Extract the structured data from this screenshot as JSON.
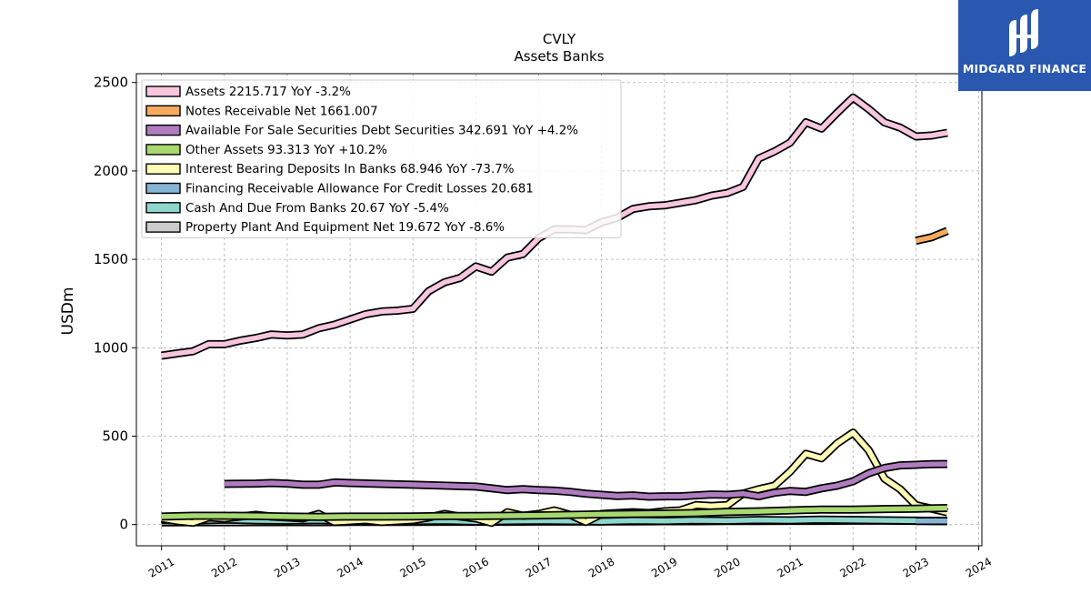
{
  "chart_data": {
    "type": "line",
    "title": "CVLY",
    "subtitle": "Assets Banks",
    "ylabel": "USDm",
    "xlim": [
      2010.6,
      2024.05
    ],
    "ylim": [
      -120,
      2550
    ],
    "yticks": [
      0,
      500,
      1000,
      1500,
      2000,
      2500
    ],
    "xticks": [
      2011,
      2012,
      2013,
      2014,
      2015,
      2016,
      2017,
      2018,
      2019,
      2020,
      2021,
      2022,
      2023,
      2024
    ],
    "grid": true,
    "legend_position": "upper-left",
    "series": [
      {
        "name": "Assets",
        "legend": "Assets  2215.717 YoY -3.2%",
        "color": "#f7c6de",
        "x": [
          2011.0,
          2011.25,
          2011.5,
          2011.75,
          2012.0,
          2012.25,
          2012.5,
          2012.75,
          2013.0,
          2013.25,
          2013.5,
          2013.75,
          2014.0,
          2014.25,
          2014.5,
          2014.75,
          2015.0,
          2015.25,
          2015.5,
          2015.75,
          2016.0,
          2016.25,
          2016.5,
          2016.75,
          2017.0,
          2017.25,
          2017.5,
          2017.75,
          2018.0,
          2018.25,
          2018.5,
          2018.75,
          2019.0,
          2019.25,
          2019.5,
          2019.75,
          2020.0,
          2020.25,
          2020.5,
          2020.75,
          2021.0,
          2021.25,
          2021.5,
          2021.75,
          2022.0,
          2022.25,
          2022.5,
          2022.75,
          2023.0,
          2023.25,
          2023.5
        ],
        "y": [
          955,
          968,
          980,
          1020,
          1020,
          1040,
          1055,
          1075,
          1070,
          1075,
          1110,
          1130,
          1160,
          1190,
          1205,
          1210,
          1220,
          1320,
          1370,
          1395,
          1460,
          1430,
          1510,
          1530,
          1620,
          1670,
          1670,
          1665,
          1710,
          1735,
          1785,
          1800,
          1805,
          1820,
          1835,
          1860,
          1875,
          1910,
          2070,
          2110,
          2160,
          2275,
          2240,
          2330,
          2415,
          2350,
          2275,
          2245,
          2195,
          2200,
          2215.717
        ]
      },
      {
        "name": "Notes Receivable Net",
        "legend": "Notes Receivable Net  1661.007",
        "color": "#f5aa60",
        "x": [
          2023.0,
          2023.25,
          2023.5
        ],
        "y": [
          1605,
          1625,
          1661.007
        ]
      },
      {
        "name": "Available For Sale Securities Debt Securities",
        "legend": "Available For Sale Securities Debt Securities  342.691 YoY +4.2%",
        "color": "#b07cc0",
        "x": [
          2012.0,
          2012.5,
          2012.75,
          2013.0,
          2013.25,
          2013.5,
          2013.75,
          2014.0,
          2014.5,
          2015.0,
          2015.5,
          2016.0,
          2016.25,
          2016.5,
          2016.75,
          2017.0,
          2017.25,
          2017.5,
          2017.75,
          2018.0,
          2018.25,
          2018.5,
          2018.75,
          2019.0,
          2019.25,
          2019.5,
          2019.75,
          2020.0,
          2020.25,
          2020.5,
          2020.75,
          2021.0,
          2021.25,
          2021.5,
          2021.75,
          2022.0,
          2022.25,
          2022.5,
          2022.75,
          2023.0,
          2023.25,
          2023.5
        ],
        "y": [
          230,
          232,
          235,
          232,
          225,
          225,
          238,
          235,
          230,
          225,
          220,
          215,
          205,
          195,
          200,
          195,
          192,
          185,
          175,
          168,
          162,
          165,
          158,
          160,
          160,
          165,
          170,
          168,
          175,
          160,
          180,
          190,
          185,
          205,
          220,
          245,
          290,
          320,
          335,
          338,
          342,
          342.691
        ]
      },
      {
        "name": "Other Assets",
        "legend": "Other Assets  93.313 YoY +10.2%",
        "color": "#a8d870",
        "x": [
          2011.0,
          2011.5,
          2012.0,
          2012.5,
          2013.0,
          2013.5,
          2014.0,
          2014.5,
          2015.0,
          2015.5,
          2016.0,
          2016.5,
          2017.0,
          2017.5,
          2018.0,
          2018.5,
          2019.0,
          2019.5,
          2020.0,
          2020.5,
          2021.0,
          2021.5,
          2022.0,
          2022.5,
          2023.0,
          2023.5
        ],
        "y": [
          45,
          50,
          50,
          48,
          45,
          43,
          45,
          45,
          46,
          48,
          48,
          50,
          52,
          55,
          58,
          60,
          62,
          65,
          72,
          75,
          80,
          85,
          85,
          88,
          90,
          93.313
        ]
      },
      {
        "name": "Interest Bearing Deposits In Banks",
        "legend": "Interest Bearing Deposits In Banks  68.946 YoY -73.7%",
        "color": "#fefdb6",
        "x": [
          2011.0,
          2011.25,
          2011.5,
          2011.75,
          2012.0,
          2012.25,
          2012.5,
          2012.75,
          2013.0,
          2013.25,
          2013.5,
          2013.75,
          2014.0,
          2014.25,
          2014.5,
          2014.75,
          2015.0,
          2015.25,
          2015.5,
          2015.75,
          2016.0,
          2016.25,
          2016.5,
          2016.75,
          2017.0,
          2017.25,
          2017.5,
          2017.75,
          2018.0,
          2018.25,
          2018.5,
          2018.75,
          2019.0,
          2019.25,
          2019.5,
          2019.75,
          2020.0,
          2020.25,
          2020.5,
          2020.75,
          2021.0,
          2021.25,
          2021.5,
          2021.75,
          2022.0,
          2022.25,
          2022.5,
          2022.75,
          2023.0,
          2023.25,
          2023.5
        ],
        "y": [
          35,
          20,
          10,
          40,
          35,
          45,
          55,
          45,
          40,
          35,
          60,
          15,
          20,
          25,
          15,
          20,
          25,
          40,
          60,
          45,
          35,
          10,
          70,
          50,
          60,
          80,
          55,
          15,
          60,
          65,
          70,
          65,
          75,
          80,
          110,
          105,
          110,
          175,
          200,
          220,
          300,
          400,
          375,
          460,
          520,
          420,
          260,
          200,
          110,
          90,
          68.946
        ]
      },
      {
        "name": "Financing Receivable Allowance For Credit Losses",
        "legend": "Financing Receivable Allowance For Credit Losses  20.681",
        "color": "#86b4d4",
        "x": [
          2023.0,
          2023.25,
          2023.5
        ],
        "y": [
          20.0,
          20.3,
          20.681
        ]
      },
      {
        "name": "Cash And Due From Banks",
        "legend": "Cash And Due From Banks  20.67 YoY -5.4%",
        "color": "#8ed6cc",
        "x": [
          2011.0,
          2011.5,
          2012.0,
          2012.5,
          2013.0,
          2013.5,
          2014.0,
          2014.5,
          2015.0,
          2015.5,
          2016.0,
          2016.5,
          2017.0,
          2017.5,
          2018.0,
          2018.5,
          2019.0,
          2019.5,
          2020.0,
          2020.5,
          2021.0,
          2021.5,
          2022.0,
          2022.5,
          2023.0,
          2023.5
        ],
        "y": [
          25,
          22,
          28,
          24,
          22,
          25,
          20,
          18,
          20,
          22,
          18,
          20,
          22,
          20,
          18,
          22,
          20,
          24,
          22,
          26,
          24,
          28,
          26,
          24,
          22,
          20.67
        ]
      },
      {
        "name": "Property Plant And Equipment Net",
        "legend": "Property Plant And Equipment Net  19.672 YoY -8.6%",
        "color": "#cccccc",
        "x": [
          2011.0,
          2011.5,
          2012.0,
          2012.5,
          2013.0,
          2013.5,
          2014.0,
          2014.5,
          2015.0,
          2015.5,
          2016.0,
          2016.5,
          2017.0,
          2017.5,
          2018.0,
          2018.5,
          2019.0,
          2019.5,
          2020.0,
          2020.5,
          2021.0,
          2021.5,
          2022.0,
          2022.5,
          2023.0,
          2023.5
        ],
        "y": [
          12,
          13,
          13,
          14,
          14,
          14,
          15,
          15,
          15,
          16,
          16,
          16,
          17,
          17,
          18,
          18,
          19,
          19,
          20,
          20,
          21,
          21,
          22,
          22,
          21,
          19.672
        ]
      }
    ]
  },
  "brand": {
    "name": "MIDGARD FINANCE",
    "logo_icon": "midgard-logo-icon",
    "color": "#2a58b0"
  }
}
